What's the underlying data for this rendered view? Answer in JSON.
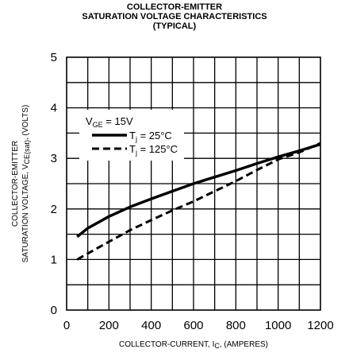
{
  "chart_data": {
    "type": "line",
    "title": [
      "COLLECTOR-EMITTER",
      "SATURATION VOLTAGE CHARACTERISTICS",
      "(TYPICAL)"
    ],
    "xlabel": {
      "text": "COLLECTOR-CURRENT, I",
      "sub": "C",
      "suffix": ", (AMPERES)"
    },
    "ylabel": {
      "line1": "COLLECTOR-EMITTER",
      "line2": "SATURATION VOLTAGE, V",
      "sub": "CE(sat)",
      "suffix": ", (VOLTS)"
    },
    "xlim": [
      0,
      1200
    ],
    "ylim": [
      0,
      5
    ],
    "xticks": [
      0,
      200,
      400,
      600,
      800,
      1000,
      1200
    ],
    "yticks": [
      0,
      1,
      2,
      3,
      4,
      5
    ],
    "xgrid_step": 100,
    "ygrid_step": 0.5,
    "grid": true,
    "legend": {
      "header": {
        "text": "V",
        "sub": "GE",
        "suffix": " = 15V"
      },
      "placement": "top-left"
    },
    "series": [
      {
        "name": {
          "text": "T",
          "sub": "j",
          "suffix": " = 25°C"
        },
        "style": "solid",
        "x": [
          50,
          100,
          200,
          300,
          400,
          500,
          600,
          700,
          800,
          900,
          1000,
          1100,
          1200
        ],
        "y": [
          1.45,
          1.62,
          1.85,
          2.04,
          2.2,
          2.35,
          2.5,
          2.63,
          2.76,
          2.9,
          3.03,
          3.15,
          3.28
        ]
      },
      {
        "name": {
          "text": "T",
          "sub": "j",
          "suffix": " = 125°C"
        },
        "style": "dashed",
        "x": [
          50,
          100,
          200,
          300,
          400,
          500,
          600,
          700,
          800,
          900,
          1000,
          1100,
          1200
        ],
        "y": [
          1.0,
          1.12,
          1.35,
          1.58,
          1.78,
          1.97,
          2.15,
          2.35,
          2.55,
          2.77,
          2.98,
          3.12,
          3.3
        ]
      }
    ]
  }
}
